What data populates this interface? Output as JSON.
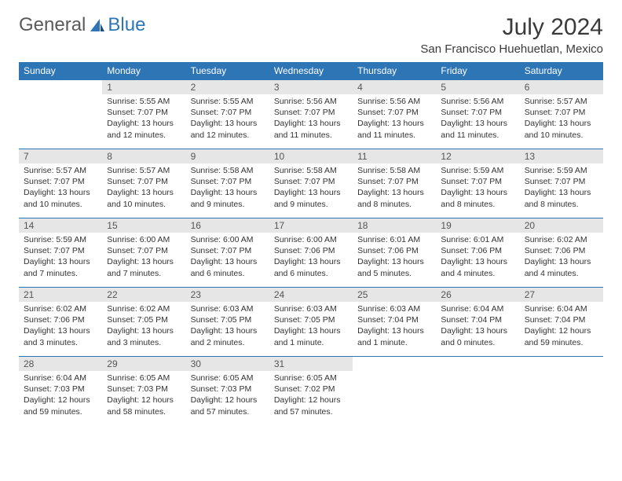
{
  "brand": {
    "text1": "General",
    "text2": "Blue"
  },
  "title": "July 2024",
  "location": "San Francisco Huehuetlan, Mexico",
  "colors": {
    "header_bg": "#2e75b6",
    "header_text": "#ffffff",
    "daynum_bg": "#e6e6e6",
    "row_border": "#2e75b6",
    "body_text": "#333333"
  },
  "weekdays": [
    "Sunday",
    "Monday",
    "Tuesday",
    "Wednesday",
    "Thursday",
    "Friday",
    "Saturday"
  ],
  "weeks": [
    [
      {
        "n": "",
        "sr": "",
        "ss": "",
        "dl": ""
      },
      {
        "n": "1",
        "sr": "Sunrise: 5:55 AM",
        "ss": "Sunset: 7:07 PM",
        "dl": "Daylight: 13 hours and 12 minutes."
      },
      {
        "n": "2",
        "sr": "Sunrise: 5:55 AM",
        "ss": "Sunset: 7:07 PM",
        "dl": "Daylight: 13 hours and 12 minutes."
      },
      {
        "n": "3",
        "sr": "Sunrise: 5:56 AM",
        "ss": "Sunset: 7:07 PM",
        "dl": "Daylight: 13 hours and 11 minutes."
      },
      {
        "n": "4",
        "sr": "Sunrise: 5:56 AM",
        "ss": "Sunset: 7:07 PM",
        "dl": "Daylight: 13 hours and 11 minutes."
      },
      {
        "n": "5",
        "sr": "Sunrise: 5:56 AM",
        "ss": "Sunset: 7:07 PM",
        "dl": "Daylight: 13 hours and 11 minutes."
      },
      {
        "n": "6",
        "sr": "Sunrise: 5:57 AM",
        "ss": "Sunset: 7:07 PM",
        "dl": "Daylight: 13 hours and 10 minutes."
      }
    ],
    [
      {
        "n": "7",
        "sr": "Sunrise: 5:57 AM",
        "ss": "Sunset: 7:07 PM",
        "dl": "Daylight: 13 hours and 10 minutes."
      },
      {
        "n": "8",
        "sr": "Sunrise: 5:57 AM",
        "ss": "Sunset: 7:07 PM",
        "dl": "Daylight: 13 hours and 10 minutes."
      },
      {
        "n": "9",
        "sr": "Sunrise: 5:58 AM",
        "ss": "Sunset: 7:07 PM",
        "dl": "Daylight: 13 hours and 9 minutes."
      },
      {
        "n": "10",
        "sr": "Sunrise: 5:58 AM",
        "ss": "Sunset: 7:07 PM",
        "dl": "Daylight: 13 hours and 9 minutes."
      },
      {
        "n": "11",
        "sr": "Sunrise: 5:58 AM",
        "ss": "Sunset: 7:07 PM",
        "dl": "Daylight: 13 hours and 8 minutes."
      },
      {
        "n": "12",
        "sr": "Sunrise: 5:59 AM",
        "ss": "Sunset: 7:07 PM",
        "dl": "Daylight: 13 hours and 8 minutes."
      },
      {
        "n": "13",
        "sr": "Sunrise: 5:59 AM",
        "ss": "Sunset: 7:07 PM",
        "dl": "Daylight: 13 hours and 8 minutes."
      }
    ],
    [
      {
        "n": "14",
        "sr": "Sunrise: 5:59 AM",
        "ss": "Sunset: 7:07 PM",
        "dl": "Daylight: 13 hours and 7 minutes."
      },
      {
        "n": "15",
        "sr": "Sunrise: 6:00 AM",
        "ss": "Sunset: 7:07 PM",
        "dl": "Daylight: 13 hours and 7 minutes."
      },
      {
        "n": "16",
        "sr": "Sunrise: 6:00 AM",
        "ss": "Sunset: 7:07 PM",
        "dl": "Daylight: 13 hours and 6 minutes."
      },
      {
        "n": "17",
        "sr": "Sunrise: 6:00 AM",
        "ss": "Sunset: 7:06 PM",
        "dl": "Daylight: 13 hours and 6 minutes."
      },
      {
        "n": "18",
        "sr": "Sunrise: 6:01 AM",
        "ss": "Sunset: 7:06 PM",
        "dl": "Daylight: 13 hours and 5 minutes."
      },
      {
        "n": "19",
        "sr": "Sunrise: 6:01 AM",
        "ss": "Sunset: 7:06 PM",
        "dl": "Daylight: 13 hours and 4 minutes."
      },
      {
        "n": "20",
        "sr": "Sunrise: 6:02 AM",
        "ss": "Sunset: 7:06 PM",
        "dl": "Daylight: 13 hours and 4 minutes."
      }
    ],
    [
      {
        "n": "21",
        "sr": "Sunrise: 6:02 AM",
        "ss": "Sunset: 7:06 PM",
        "dl": "Daylight: 13 hours and 3 minutes."
      },
      {
        "n": "22",
        "sr": "Sunrise: 6:02 AM",
        "ss": "Sunset: 7:05 PM",
        "dl": "Daylight: 13 hours and 3 minutes."
      },
      {
        "n": "23",
        "sr": "Sunrise: 6:03 AM",
        "ss": "Sunset: 7:05 PM",
        "dl": "Daylight: 13 hours and 2 minutes."
      },
      {
        "n": "24",
        "sr": "Sunrise: 6:03 AM",
        "ss": "Sunset: 7:05 PM",
        "dl": "Daylight: 13 hours and 1 minute."
      },
      {
        "n": "25",
        "sr": "Sunrise: 6:03 AM",
        "ss": "Sunset: 7:04 PM",
        "dl": "Daylight: 13 hours and 1 minute."
      },
      {
        "n": "26",
        "sr": "Sunrise: 6:04 AM",
        "ss": "Sunset: 7:04 PM",
        "dl": "Daylight: 13 hours and 0 minutes."
      },
      {
        "n": "27",
        "sr": "Sunrise: 6:04 AM",
        "ss": "Sunset: 7:04 PM",
        "dl": "Daylight: 12 hours and 59 minutes."
      }
    ],
    [
      {
        "n": "28",
        "sr": "Sunrise: 6:04 AM",
        "ss": "Sunset: 7:03 PM",
        "dl": "Daylight: 12 hours and 59 minutes."
      },
      {
        "n": "29",
        "sr": "Sunrise: 6:05 AM",
        "ss": "Sunset: 7:03 PM",
        "dl": "Daylight: 12 hours and 58 minutes."
      },
      {
        "n": "30",
        "sr": "Sunrise: 6:05 AM",
        "ss": "Sunset: 7:03 PM",
        "dl": "Daylight: 12 hours and 57 minutes."
      },
      {
        "n": "31",
        "sr": "Sunrise: 6:05 AM",
        "ss": "Sunset: 7:02 PM",
        "dl": "Daylight: 12 hours and 57 minutes."
      },
      {
        "n": "",
        "sr": "",
        "ss": "",
        "dl": ""
      },
      {
        "n": "",
        "sr": "",
        "ss": "",
        "dl": ""
      },
      {
        "n": "",
        "sr": "",
        "ss": "",
        "dl": ""
      }
    ]
  ]
}
